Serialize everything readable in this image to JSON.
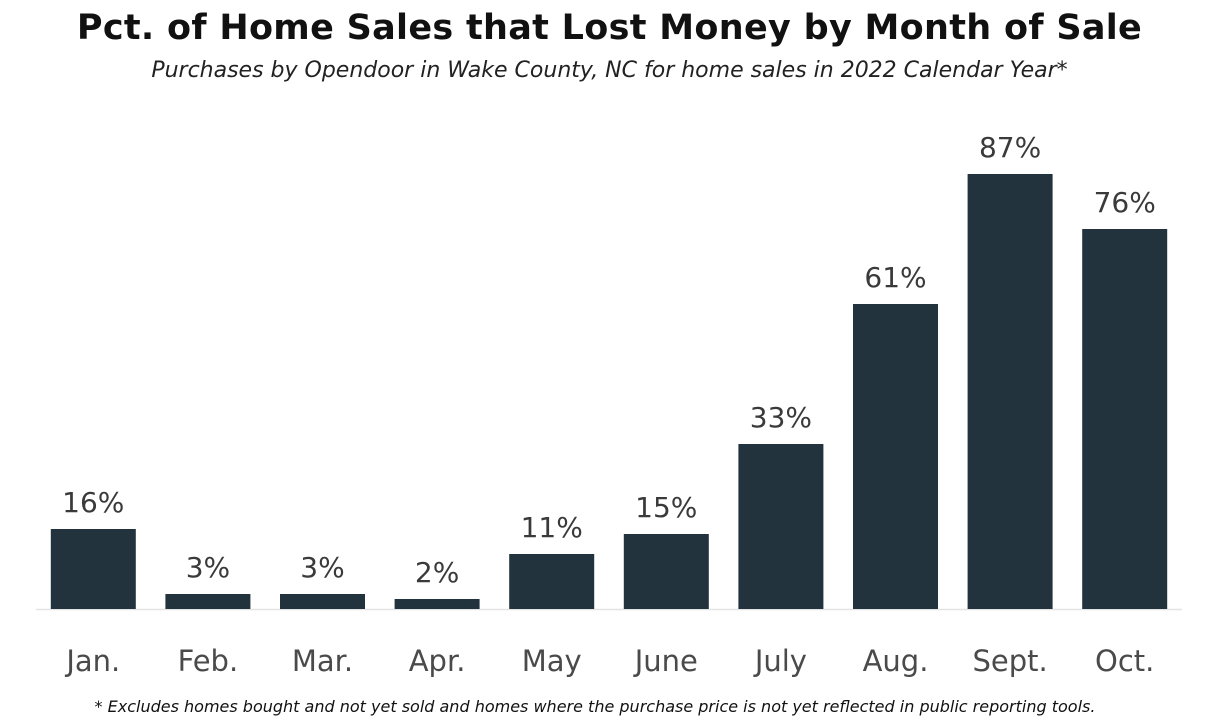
{
  "chart_data": {
    "type": "bar",
    "title": "Pct. of Home Sales that Lost Money by Month of Sale",
    "subtitle": "Purchases by Opendoor in Wake County, NC for home sales in 2022 Calendar Year*",
    "footnote": "* Excludes homes bought and not yet sold and homes where the purchase price is not yet reflected in public reporting tools.",
    "categories": [
      "Jan.",
      "Feb.",
      "Mar.",
      "Apr.",
      "May",
      "June",
      "July",
      "Aug.",
      "Sept.",
      "Oct."
    ],
    "values": [
      16,
      3,
      3,
      2,
      11,
      15,
      33,
      61,
      87,
      76
    ],
    "labels": [
      "16%",
      "3%",
      "3%",
      "2%",
      "11%",
      "15%",
      "33%",
      "61%",
      "87%",
      "76%"
    ],
    "xlabel": "",
    "ylabel": "",
    "ylim": [
      0,
      100
    ],
    "grid": false,
    "bar_color": "#22333d",
    "axis_color": "#e3e3e3"
  }
}
